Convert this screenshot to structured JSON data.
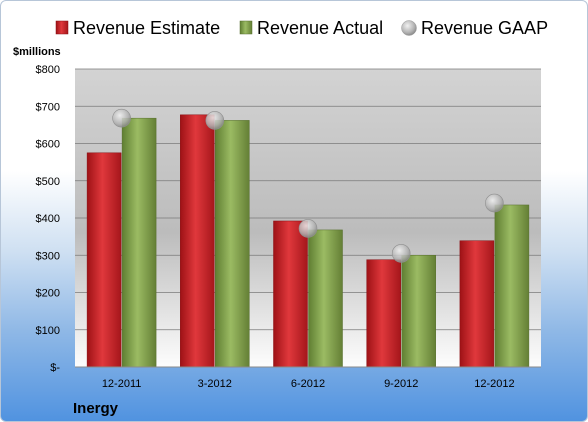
{
  "chart_data": {
    "type": "bar",
    "title": "",
    "ylabel": "$millions",
    "xlabel": "",
    "ylim": [
      0,
      800
    ],
    "yticks": [
      0,
      100,
      200,
      300,
      400,
      500,
      600,
      700,
      800
    ],
    "ytick_labels": [
      "$-",
      "$100",
      "$200",
      "$300",
      "$400",
      "$500",
      "$600",
      "$700",
      "$800"
    ],
    "categories": [
      "12-2011",
      "3-2012",
      "6-2012",
      "9-2012",
      "12-2012"
    ],
    "series": [
      {
        "name": "Revenue Estimate",
        "kind": "bar",
        "color": "#d42a2f",
        "values": [
          575,
          677,
          392,
          288,
          339
        ]
      },
      {
        "name": "Revenue Actual",
        "kind": "bar",
        "color": "#8cab57",
        "values": [
          668,
          662,
          368,
          300,
          435
        ]
      },
      {
        "name": "Revenue GAAP",
        "kind": "marker",
        "color": "#b8b8b8",
        "values": [
          668,
          662,
          372,
          305,
          440
        ]
      }
    ],
    "legend_position": "top",
    "grid": true,
    "company": "Inergy"
  }
}
